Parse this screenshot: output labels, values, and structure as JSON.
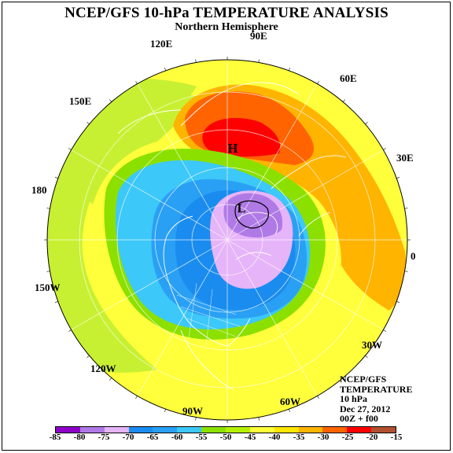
{
  "title": "NCEP/GFS 10-hPa TEMPERATURE ANALYSIS",
  "subtitle": "Northern Hemisphere",
  "longitude_labels": [
    {
      "name": "lon-90e",
      "text": "90E"
    },
    {
      "name": "lon-60e",
      "text": "60E"
    },
    {
      "name": "lon-30e",
      "text": "30E"
    },
    {
      "name": "lon-0",
      "text": "0"
    },
    {
      "name": "lon-30w",
      "text": "30W"
    },
    {
      "name": "lon-60w",
      "text": "60W"
    },
    {
      "name": "lon-90w",
      "text": "90W"
    },
    {
      "name": "lon-120w",
      "text": "120W"
    },
    {
      "name": "lon-150w",
      "text": "150W"
    },
    {
      "name": "lon-180",
      "text": "180"
    },
    {
      "name": "lon-150e",
      "text": "150E"
    },
    {
      "name": "lon-120e",
      "text": "120E"
    }
  ],
  "markers": {
    "high": "H",
    "low": "L"
  },
  "info": {
    "line1": "NCEP/GFS",
    "line2": "TEMPERATURE",
    "line3": "10 hPa",
    "line4": "Dec 27, 2012",
    "line5": "00Z + f00"
  },
  "colorbar": {
    "ticks": [
      "-85",
      "-80",
      "-75",
      "-70",
      "-65",
      "-60",
      "-55",
      "-50",
      "-45",
      "-40",
      "-35",
      "-30",
      "-25",
      "-20",
      "-15"
    ],
    "colors": [
      "#8e00c8",
      "#b07ae6",
      "#e6b4f8",
      "#1a8cf0",
      "#2aa0f5",
      "#3cc8f8",
      "#8ce000",
      "#b4f000",
      "#ffff3c",
      "#ffe600",
      "#ffb400",
      "#ff6400",
      "#ff0000",
      "#b05030"
    ]
  }
}
